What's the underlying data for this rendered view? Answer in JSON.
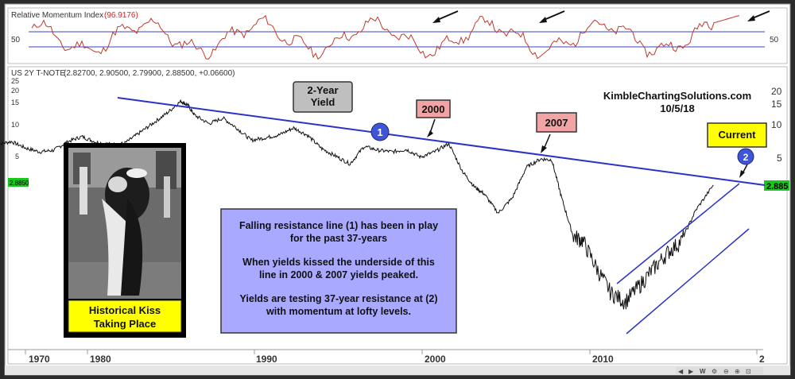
{
  "rmi_panel": {
    "title": "Relative Momentum Index",
    "value": "(96.9176)",
    "value_color": "#d22",
    "tick_left": "50",
    "tick_right": "50",
    "line_color": "#c0392b",
    "band_color": "#3b43c4"
  },
  "price_panel": {
    "title": "US 2Y T-NOTE",
    "ohlc": "(2.82700, 2.90500, 2.79900, 2.88500, +0.06600)",
    "left_price_tag": "2.8850",
    "right_price_tag": "2.885",
    "tag_color": "#19c51f",
    "left_ticks": [
      "25",
      "20",
      "15",
      "10",
      "5"
    ],
    "right_ticks": [
      "20",
      "15",
      "10",
      "5"
    ]
  },
  "x_axis": {
    "labels": [
      "1970",
      "1980",
      "1990",
      "2000",
      "2010",
      "2"
    ]
  },
  "annotations": {
    "title_box": {
      "line1": "2-Year",
      "line2": "Yield"
    },
    "box_2000": "2000",
    "box_2007": "2007",
    "current": "Current",
    "circle_1": "1",
    "circle_2": "2",
    "source_line1": "KimbleChartingSolutions.com",
    "source_line2": "10/5/18",
    "photo_caption_line1": "Historical Kiss",
    "photo_caption_line2": "Taking Place",
    "info_line1": "Falling resistance line (1) has been in play",
    "info_line2": "for the past 37-years",
    "info_line3": "When yields kissed the underside of this",
    "info_line4": "line in 2000 & 2007 yields peaked.",
    "info_line5": "Yields are testing 37-year resistance at (2)",
    "info_line6": "with momentum at lofty levels."
  },
  "toolbar": {
    "icons": [
      "scroll-left-icon",
      "scroll-right-icon",
      "weekly-w-icon",
      "settings-icon",
      "zoom-out-icon",
      "zoom-in-icon",
      "zoom-fit-icon"
    ]
  },
  "chart_data": {
    "type": "line",
    "title": "US 2Y T-NOTE",
    "y_scale": "log",
    "ylim": [
      2.5,
      25
    ],
    "xlim": [
      1968,
      2019
    ],
    "series": [
      {
        "values_x": [
          1968,
          1969,
          1970,
          1971,
          1972,
          1973,
          1974,
          1975,
          1976,
          1977,
          1978,
          1979,
          1980,
          1981,
          1981.5,
          1982,
          1983,
          1984,
          1985,
          1986,
          1987,
          1988,
          1989,
          1990,
          1991,
          1992,
          1993,
          1994,
          1995,
          1996,
          1997,
          1998,
          1999,
          2000,
          2001,
          2001.8,
          2002.5,
          2003.5,
          2004.5,
          2005.5,
          2006.5,
          2007.3,
          2008,
          2008.8,
          2009.5,
          2010.5,
          2011.5,
          2012.5,
          2013.5,
          2014.5,
          2015.5,
          2016.5,
          2017.5,
          2018.75
        ],
        "values_y": [
          6.8,
          7.2,
          6.3,
          5.8,
          6.0,
          7.2,
          8.0,
          7.1,
          6.8,
          6.9,
          8.5,
          10.5,
          13.0,
          16.8,
          15.5,
          12.5,
          10.5,
          11.8,
          9.5,
          7.4,
          7.8,
          8.3,
          9.6,
          8.2,
          6.2,
          5.3,
          4.5,
          6.5,
          6.0,
          5.8,
          6.1,
          5.2,
          5.8,
          6.9,
          3.8,
          2.8,
          2.4,
          1.6,
          2.2,
          4.2,
          5.0,
          4.9,
          2.2,
          1.0,
          0.9,
          0.5,
          0.3,
          0.25,
          0.35,
          0.5,
          0.7,
          0.9,
          1.7,
          2.885
        ]
      }
    ],
    "rmi": {
      "range": [
        0,
        100
      ],
      "bands": [
        70,
        30
      ],
      "last_value": 96.9176
    }
  }
}
